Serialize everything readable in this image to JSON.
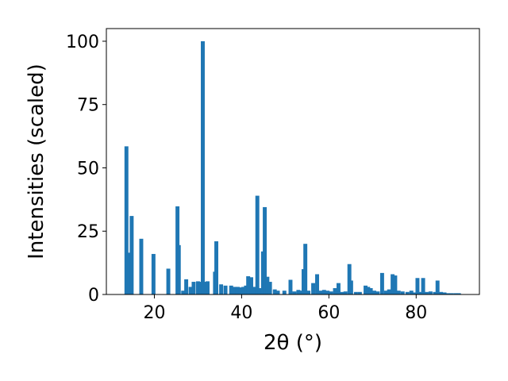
{
  "chart_data": {
    "type": "bar",
    "xlabel": "2θ (°)",
    "ylabel": "Intensities (scaled)",
    "title": "",
    "xlim": [
      9,
      94.5
    ],
    "ylim": [
      0,
      105
    ],
    "grid": false,
    "bar_color": "#1f77b4",
    "bar_width": 0.9,
    "xticks": [
      20,
      40,
      60,
      80
    ],
    "yticks": [
      0,
      25,
      50,
      75,
      100
    ],
    "x": [
      13.6,
      14.2,
      14.8,
      17.0,
      19.8,
      23.2,
      25.3,
      25.6,
      26.6,
      27.3,
      28.3,
      29.0,
      30.0,
      30.6,
      31.1,
      31.5,
      32.2,
      33.9,
      34.2,
      35.3,
      36.3,
      37.6,
      38.4,
      39.1,
      39.8,
      40.4,
      41.0,
      41.5,
      42.2,
      42.8,
      43.6,
      44.1,
      44.9,
      45.3,
      45.9,
      46.5,
      47.6,
      48.3,
      49.8,
      51.2,
      52.1,
      53.0,
      53.6,
      54.2,
      54.6,
      55.3,
      56.4,
      57.3,
      58.1,
      58.9,
      59.7,
      60.5,
      61.4,
      62.2,
      63.0,
      63.8,
      64.7,
      65.1,
      66.2,
      67.1,
      68.4,
      69.0,
      69.6,
      70.4,
      71.2,
      72.2,
      73.1,
      73.8,
      74.6,
      75.2,
      76.0,
      76.9,
      78.0,
      78.9,
      79.5,
      80.3,
      80.9,
      81.6,
      82.4,
      83.3,
      84.3,
      84.9,
      85.7,
      86.5,
      87.3,
      88.1,
      89.0,
      89.8
    ],
    "values": [
      58.5,
      16.5,
      31.0,
      22.0,
      16.0,
      10.2,
      34.8,
      19.5,
      1.5,
      6.0,
      3.0,
      5.0,
      5.2,
      5.0,
      100.0,
      5.0,
      5.2,
      9.0,
      21.0,
      4.0,
      3.5,
      3.5,
      3.0,
      3.0,
      2.8,
      3.0,
      3.5,
      7.2,
      6.8,
      3.0,
      39.0,
      2.5,
      17.0,
      34.5,
      7.0,
      5.0,
      2.0,
      1.5,
      1.5,
      5.8,
      1.2,
      1.8,
      1.5,
      10.0,
      20.0,
      1.5,
      4.5,
      8.0,
      1.5,
      1.8,
      1.5,
      1.2,
      2.5,
      4.5,
      1.0,
      1.2,
      12.0,
      5.5,
      1.0,
      1.0,
      3.5,
      3.0,
      2.5,
      1.5,
      1.2,
      8.5,
      1.5,
      2.0,
      8.0,
      7.5,
      1.5,
      1.2,
      1.0,
      1.5,
      0.8,
      6.5,
      1.0,
      6.5,
      1.0,
      1.2,
      1.0,
      5.5,
      1.0,
      0.8,
      0.5,
      0.5,
      0.5,
      0.5
    ]
  }
}
